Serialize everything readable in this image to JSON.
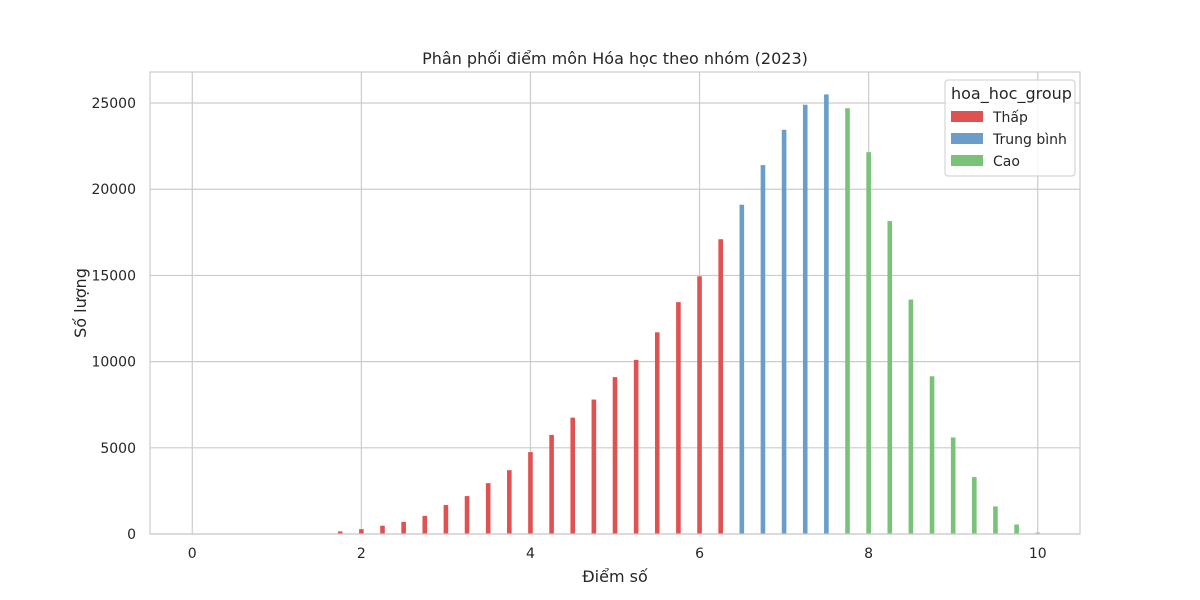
{
  "chart_data": {
    "type": "bar",
    "title": "Phân phối điểm môn Hóa học theo nhóm (2023)",
    "xlabel": "Điểm số",
    "ylabel": "Số lượng",
    "xlim": [
      -0.5,
      10.5
    ],
    "ylim": [
      0,
      26800
    ],
    "xticks": [
      0,
      2,
      4,
      6,
      8,
      10
    ],
    "yticks": [
      0,
      5000,
      10000,
      15000,
      20000,
      25000
    ],
    "grid": true,
    "legend": {
      "title": "hoa_hoc_group",
      "placement": "top-right"
    },
    "series": [
      {
        "name": "Thấp",
        "color": "#e05152",
        "x": [
          1.75,
          2.0,
          2.25,
          2.5,
          2.75,
          3.0,
          3.25,
          3.5,
          3.75,
          4.0,
          4.25,
          4.5,
          4.75,
          5.0,
          5.25,
          5.5,
          5.75,
          6.0,
          6.25
        ],
        "values": [
          150,
          280,
          480,
          700,
          1050,
          1680,
          2200,
          2950,
          3700,
          4750,
          5750,
          6750,
          7800,
          9100,
          10100,
          11700,
          13450,
          14950,
          17100
        ]
      },
      {
        "name": "Trung bình",
        "color": "#6a9ec8",
        "x": [
          6.5,
          6.75,
          7.0,
          7.25,
          7.5
        ],
        "values": [
          19100,
          21400,
          23450,
          24900,
          25500
        ]
      },
      {
        "name": "Cao",
        "color": "#79c278",
        "x": [
          7.75,
          8.0,
          8.25,
          8.5,
          8.75,
          9.0,
          9.25,
          9.5,
          9.75,
          10.0
        ],
        "values": [
          24700,
          22150,
          18150,
          13600,
          9150,
          5600,
          3300,
          1600,
          550,
          80
        ]
      }
    ]
  }
}
